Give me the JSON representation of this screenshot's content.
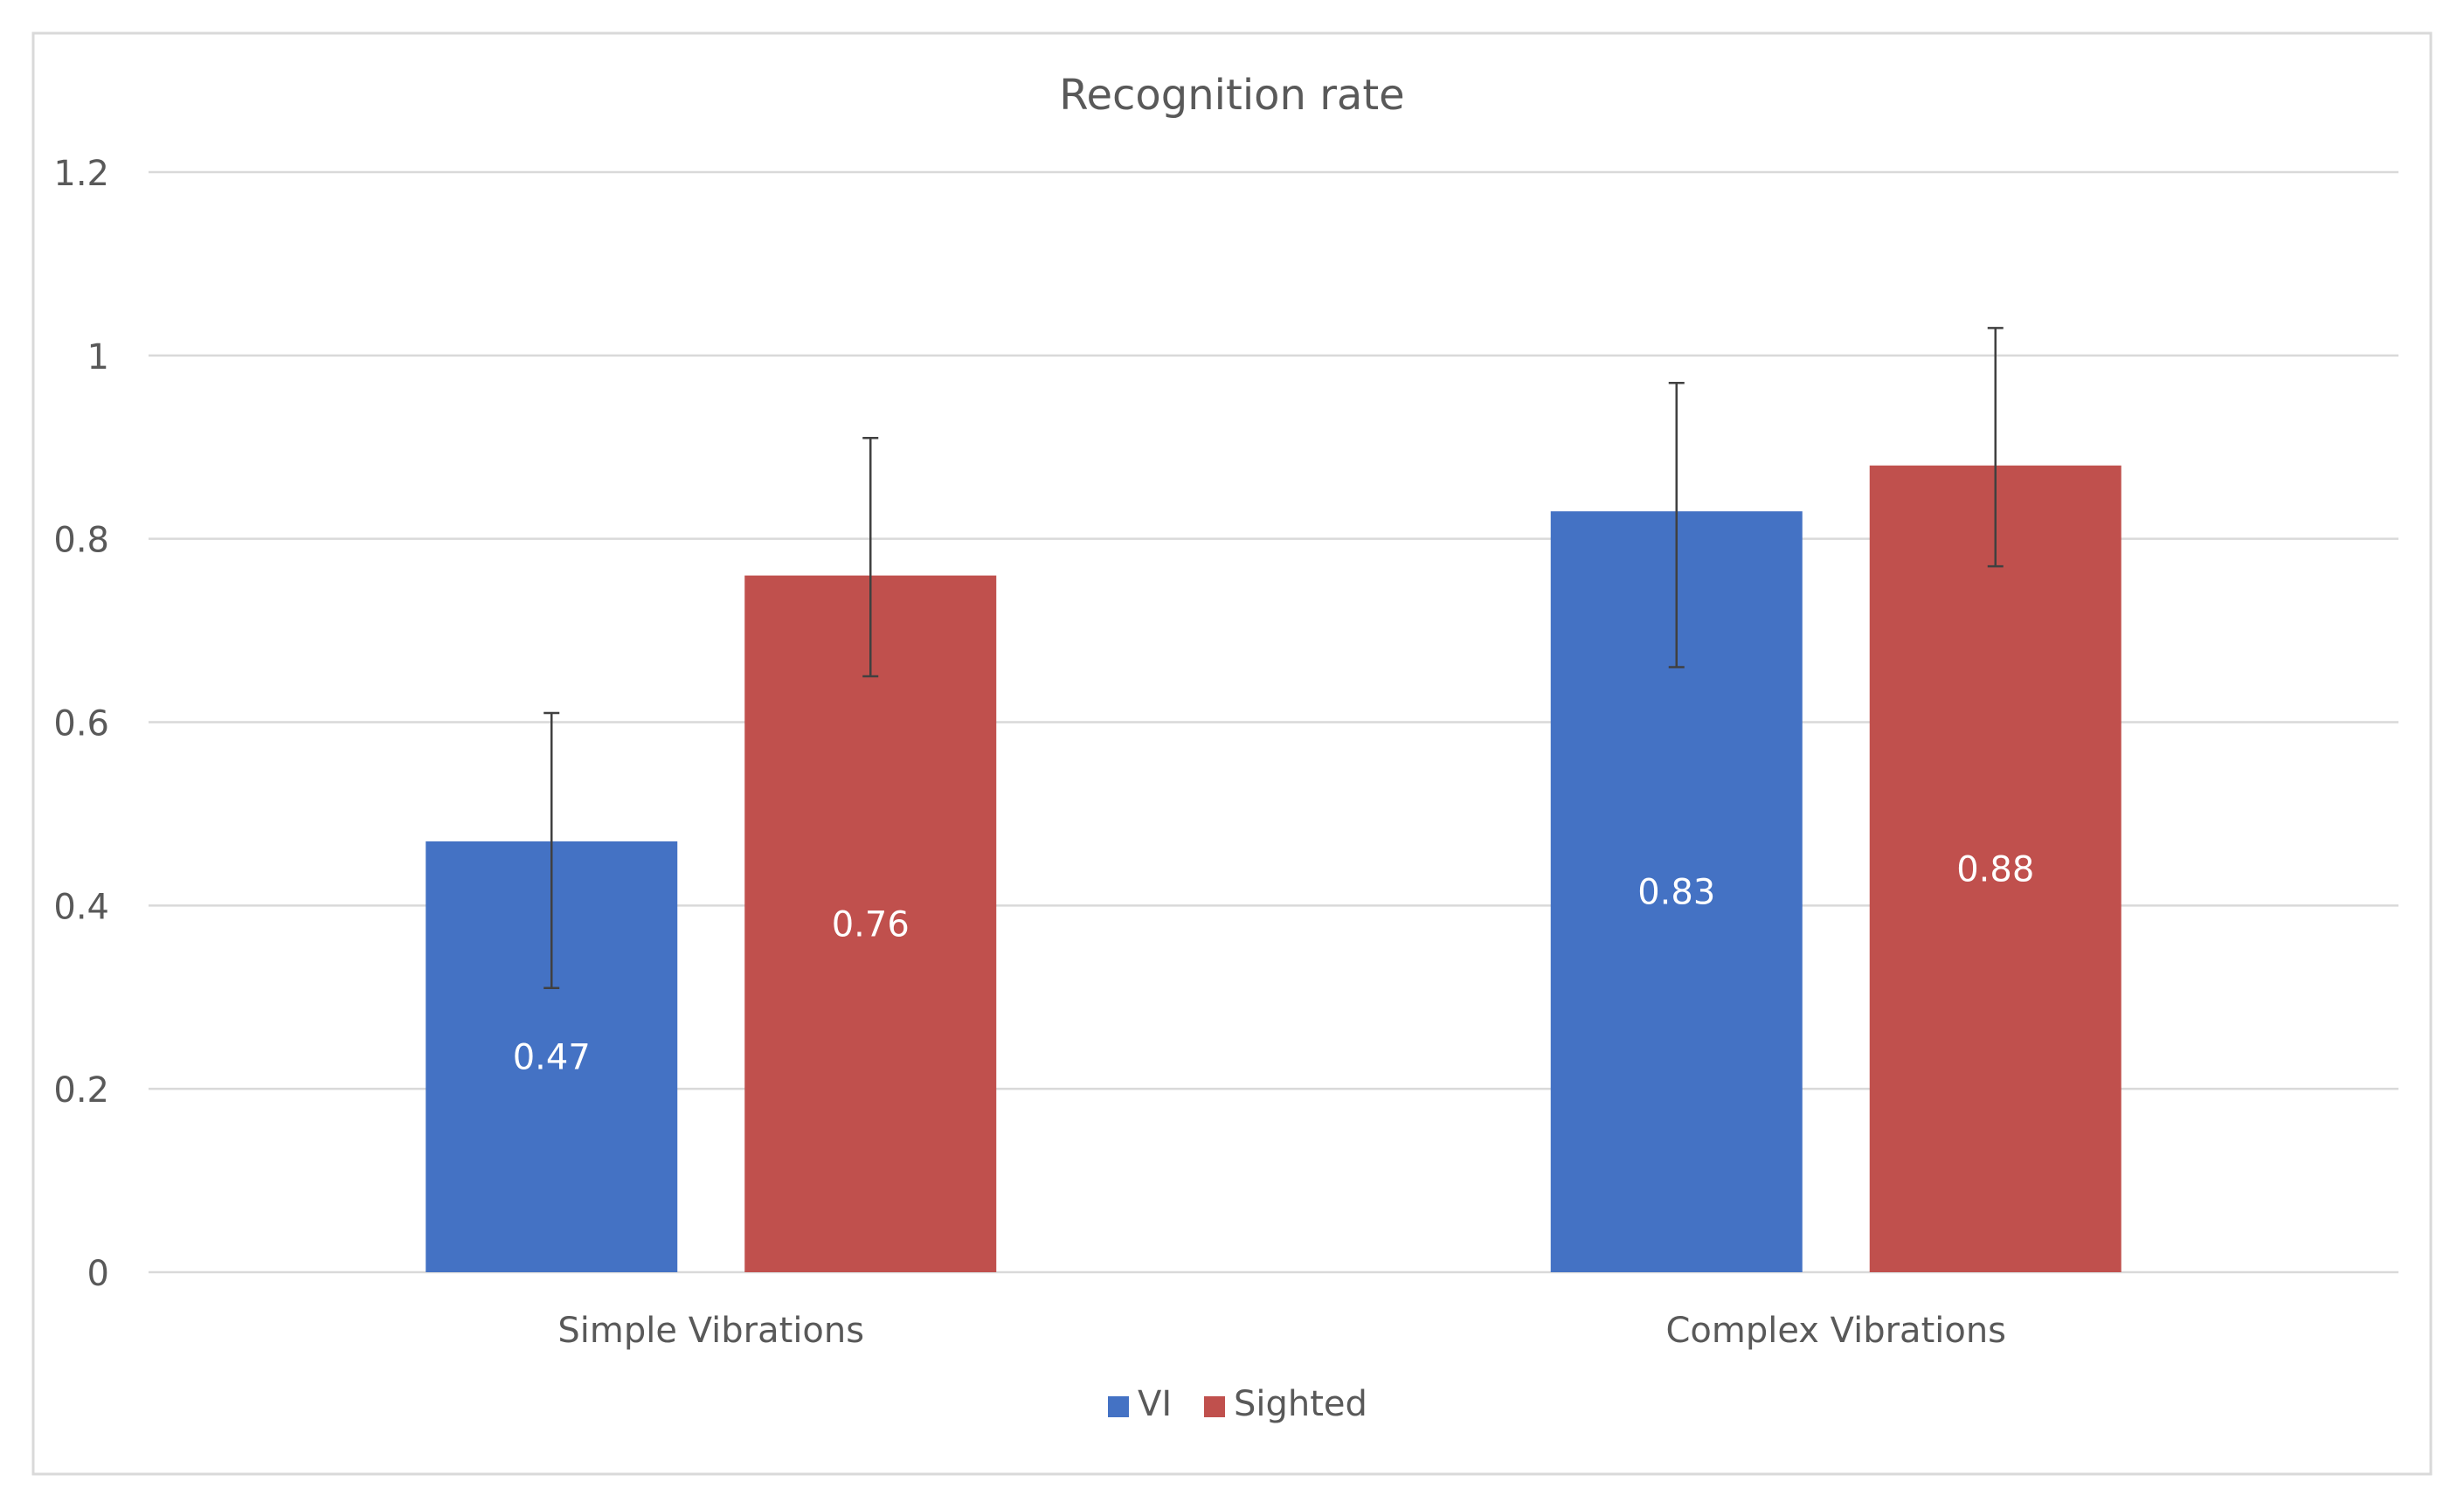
{
  "chart_data": {
    "type": "bar",
    "title": "Recognition rate",
    "categories": [
      "Simple Vibrations",
      "Complex Vibrations"
    ],
    "series": [
      {
        "name": "VI",
        "color": "#4472C4",
        "values": [
          0.47,
          0.83
        ],
        "error_plus": [
          0.14,
          0.14
        ],
        "error_minus": [
          0.16,
          0.17
        ],
        "labels": [
          "0.47",
          "0.83"
        ]
      },
      {
        "name": "Sighted",
        "color": "#C0504D",
        "values": [
          0.76,
          0.88
        ],
        "error_plus": [
          0.15,
          0.15
        ],
        "error_minus": [
          0.11,
          0.11
        ],
        "labels": [
          "0.76",
          "0.88"
        ]
      }
    ],
    "yticks": [
      "0",
      "0.2",
      "0.4",
      "0.6",
      "0.8",
      "1",
      "1.2"
    ],
    "ylim": [
      0,
      1.2
    ],
    "xlabel": "",
    "ylabel": "",
    "legend_position": "bottom",
    "gridlines": true
  }
}
